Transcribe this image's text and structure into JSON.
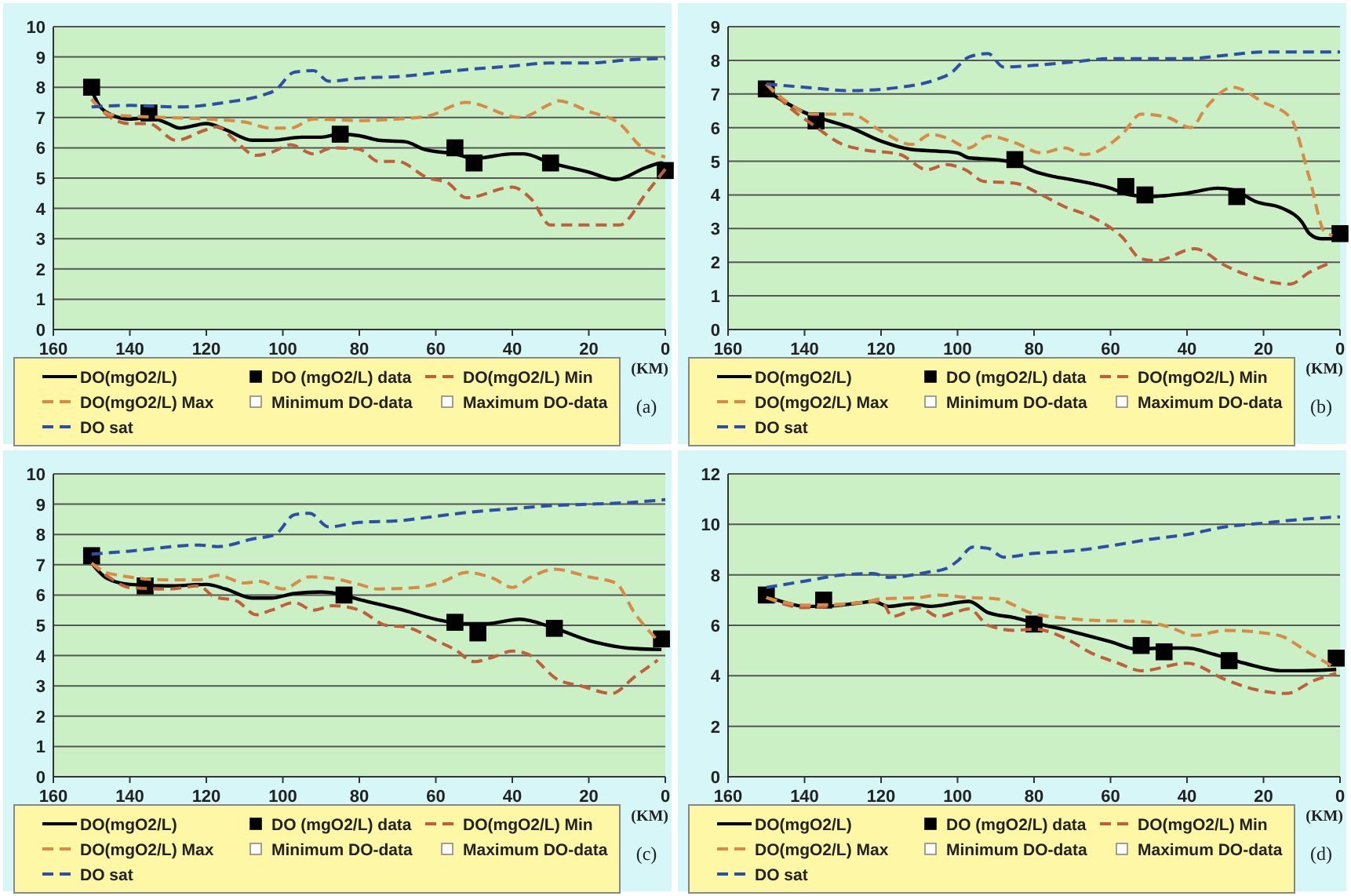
{
  "chart_data": [
    {
      "type": "line",
      "xlabel": "(KM)",
      "annotations": [
        "(a)"
      ],
      "xlim": [
        160,
        0
      ],
      "xticks": [
        160,
        140,
        120,
        100,
        80,
        60,
        40,
        20,
        0
      ],
      "ylim": [
        0,
        10
      ],
      "yticks": [
        0,
        1,
        2,
        3,
        4,
        5,
        6,
        7,
        8,
        9,
        10
      ],
      "grid": "y",
      "legend": "bottom",
      "series": [
        {
          "name": "DO(mgO2/L)",
          "type": "line",
          "color": "#000000",
          "marker": "none",
          "line_style": "solid",
          "x": [
            150,
            148,
            145,
            140,
            135,
            130,
            127,
            120,
            115,
            108,
            103,
            95,
            90,
            85,
            80,
            75,
            68,
            63,
            55,
            50,
            40,
            37,
            30,
            20,
            13,
            5,
            1,
            0
          ],
          "values": [
            7.9,
            7.4,
            7.1,
            6.95,
            7.0,
            6.8,
            6.65,
            6.8,
            6.6,
            6.25,
            6.25,
            6.35,
            6.35,
            6.45,
            6.4,
            6.25,
            6.2,
            5.95,
            5.8,
            5.65,
            5.8,
            5.8,
            5.5,
            5.2,
            4.95,
            5.35,
            5.5,
            5.4
          ]
        },
        {
          "name": "DO (mgO2/L) data",
          "type": "scatter",
          "color": "#000000",
          "marker": "square",
          "x": [
            150,
            135,
            85,
            55,
            50,
            30,
            0
          ],
          "values": [
            8.0,
            7.15,
            6.45,
            6.0,
            5.5,
            5.5,
            5.25
          ]
        },
        {
          "name": "DO(mgO2/L) Min",
          "type": "line",
          "color": "#c0603a",
          "marker": "none",
          "line_style": "dashed",
          "x": [
            150,
            145,
            140,
            135,
            128,
            120,
            117,
            113,
            107,
            103,
            98,
            92,
            87,
            80,
            75,
            70,
            62,
            57,
            52,
            40,
            35,
            30,
            12,
            5,
            0
          ],
          "values": [
            7.6,
            7.0,
            6.8,
            6.8,
            6.25,
            6.6,
            6.7,
            6.3,
            5.75,
            5.85,
            6.1,
            5.8,
            6.0,
            5.95,
            5.55,
            5.55,
            5.0,
            4.85,
            4.35,
            4.7,
            4.3,
            3.45,
            3.45,
            4.5,
            5.3
          ]
        },
        {
          "name": "DO(mgO2/L) Max",
          "type": "line",
          "color": "#d98a45",
          "marker": "none",
          "line_style": "dashed",
          "x": [
            150,
            145,
            140,
            130,
            120,
            110,
            103,
            98,
            92,
            80,
            70,
            62,
            52,
            38,
            30,
            28,
            20,
            12,
            6,
            0
          ],
          "values": [
            7.6,
            7.1,
            7.05,
            7.0,
            6.95,
            6.85,
            6.65,
            6.65,
            6.95,
            6.9,
            6.95,
            7.05,
            7.5,
            7.0,
            7.45,
            7.55,
            7.2,
            6.8,
            6.0,
            5.7
          ]
        },
        {
          "name": "Minimum DO-data",
          "type": "scatter",
          "color": "#ffffff",
          "marker": "square"
        },
        {
          "name": "Maximum DO-data",
          "type": "scatter",
          "color": "#ffffff",
          "marker": "square"
        },
        {
          "name": "DO sat",
          "type": "line",
          "color": "#2e4fa8",
          "marker": "none",
          "line_style": "dashed",
          "x": [
            150,
            140,
            127,
            115,
            105,
            102,
            97,
            92,
            88,
            80,
            70,
            55,
            40,
            30,
            20,
            10,
            0
          ],
          "values": [
            7.35,
            7.4,
            7.35,
            7.5,
            7.75,
            7.9,
            8.5,
            8.55,
            8.2,
            8.3,
            8.35,
            8.55,
            8.7,
            8.8,
            8.8,
            8.9,
            8.95
          ]
        }
      ]
    },
    {
      "type": "line",
      "xlabel": "(KM)",
      "annotations": [
        "(b)"
      ],
      "xlim": [
        160,
        0
      ],
      "xticks": [
        160,
        140,
        120,
        100,
        80,
        60,
        40,
        20,
        0
      ],
      "ylim": [
        0,
        9
      ],
      "yticks": [
        0,
        1,
        2,
        3,
        4,
        5,
        6,
        7,
        8,
        9
      ],
      "grid": "y",
      "legend": "bottom",
      "series": [
        {
          "name": "DO(mgO2/L)",
          "type": "line",
          "color": "#000000",
          "marker": "none",
          "line_style": "solid",
          "x": [
            150,
            145,
            140,
            135,
            128,
            120,
            112,
            105,
            100,
            97,
            90,
            85,
            80,
            75,
            70,
            60,
            55,
            50,
            40,
            32,
            28,
            22,
            15,
            10,
            8,
            5,
            2
          ],
          "values": [
            7.1,
            6.75,
            6.45,
            6.25,
            6.0,
            5.6,
            5.35,
            5.3,
            5.25,
            5.1,
            5.05,
            4.95,
            4.7,
            4.55,
            4.45,
            4.2,
            4.0,
            3.95,
            4.05,
            4.2,
            4.15,
            3.8,
            3.6,
            3.2,
            2.85,
            2.7,
            2.7
          ]
        },
        {
          "name": "DO (mgO2/L) data",
          "type": "scatter",
          "color": "#000000",
          "marker": "square",
          "x": [
            150,
            137,
            85,
            56,
            51,
            27,
            0
          ],
          "values": [
            7.15,
            6.2,
            5.05,
            4.25,
            4.0,
            3.95,
            2.85
          ]
        },
        {
          "name": "DO(mgO2/L) Min",
          "type": "line",
          "color": "#c0603a",
          "marker": "none",
          "line_style": "dashed",
          "x": [
            150,
            145,
            138,
            130,
            125,
            115,
            108,
            103,
            98,
            93,
            85,
            78,
            72,
            65,
            57,
            52,
            48,
            38,
            30,
            25,
            13,
            8,
            2
          ],
          "values": [
            7.3,
            6.7,
            6.1,
            5.5,
            5.35,
            5.2,
            4.75,
            4.9,
            4.75,
            4.4,
            4.35,
            4.0,
            3.65,
            3.35,
            2.75,
            2.1,
            2.05,
            2.4,
            1.9,
            1.65,
            1.35,
            1.7,
            2.0
          ]
        },
        {
          "name": "DO(mgO2/L) Max",
          "type": "line",
          "color": "#d98a45",
          "marker": "none",
          "line_style": "dashed",
          "x": [
            150,
            145,
            138,
            128,
            120,
            112,
            107,
            103,
            97,
            92,
            85,
            78,
            72,
            67,
            57,
            52,
            45,
            39,
            35,
            28,
            20,
            13,
            8,
            4,
            2
          ],
          "values": [
            7.3,
            6.8,
            6.4,
            6.4,
            5.9,
            5.5,
            5.8,
            5.7,
            5.4,
            5.75,
            5.55,
            5.25,
            5.4,
            5.2,
            5.8,
            6.4,
            6.3,
            6.0,
            6.6,
            7.2,
            6.75,
            6.3,
            4.5,
            2.9,
            2.8
          ]
        },
        {
          "name": "Minimum DO-data",
          "type": "scatter",
          "color": "#ffffff",
          "marker": "square"
        },
        {
          "name": "Maximum DO-data",
          "type": "scatter",
          "color": "#ffffff",
          "marker": "square"
        },
        {
          "name": "DO sat",
          "type": "line",
          "color": "#2e4fa8",
          "marker": "none",
          "line_style": "dashed",
          "x": [
            150,
            140,
            128,
            115,
            105,
            102,
            97,
            92,
            88,
            80,
            70,
            60,
            40,
            30,
            20,
            10,
            0
          ],
          "values": [
            7.3,
            7.2,
            7.1,
            7.2,
            7.45,
            7.6,
            8.1,
            8.2,
            7.8,
            7.85,
            7.95,
            8.05,
            8.05,
            8.15,
            8.25,
            8.25,
            8.25
          ]
        }
      ]
    },
    {
      "type": "line",
      "xlabel": "(KM)",
      "annotations": [
        "(c)"
      ],
      "xlim": [
        160,
        0
      ],
      "xticks": [
        160,
        140,
        120,
        100,
        80,
        60,
        40,
        20,
        0
      ],
      "ylim": [
        0,
        10
      ],
      "yticks": [
        0,
        1,
        2,
        3,
        4,
        5,
        6,
        7,
        8,
        9,
        10
      ],
      "grid": "y",
      "legend": "bottom",
      "series": [
        {
          "name": "DO(mgO2/L)",
          "type": "line",
          "color": "#000000",
          "marker": "none",
          "line_style": "solid",
          "x": [
            150,
            146,
            140,
            130,
            120,
            115,
            108,
            103,
            97,
            90,
            86,
            80,
            70,
            60,
            53,
            47,
            38,
            30,
            20,
            10,
            1
          ],
          "values": [
            7.05,
            6.55,
            6.35,
            6.3,
            6.35,
            6.2,
            5.9,
            5.9,
            6.05,
            6.1,
            6.05,
            5.85,
            5.55,
            5.2,
            5.05,
            5.05,
            5.2,
            4.95,
            4.5,
            4.25,
            4.2
          ]
        },
        {
          "name": "DO (mgO2/L) data",
          "type": "scatter",
          "color": "#000000",
          "marker": "square",
          "x": [
            150,
            136,
            84,
            55,
            49,
            29,
            1
          ],
          "values": [
            7.3,
            6.3,
            6.0,
            5.1,
            4.75,
            4.9,
            4.55
          ]
        },
        {
          "name": "DO(mgO2/L) Min",
          "type": "line",
          "color": "#c0603a",
          "marker": "none",
          "line_style": "dashed",
          "x": [
            150,
            145,
            140,
            130,
            122,
            118,
            112,
            107,
            103,
            97,
            92,
            87,
            80,
            73,
            68,
            60,
            55,
            50,
            45,
            40,
            36,
            28,
            22,
            14,
            8,
            2
          ],
          "values": [
            7.05,
            6.55,
            6.25,
            6.2,
            6.3,
            5.95,
            5.8,
            5.35,
            5.5,
            5.75,
            5.5,
            5.65,
            5.5,
            5.0,
            4.95,
            4.5,
            4.2,
            3.8,
            3.95,
            4.15,
            4.05,
            3.2,
            3.0,
            2.75,
            3.3,
            3.85
          ]
        },
        {
          "name": "DO(mgO2/L) Max",
          "type": "line",
          "color": "#d98a45",
          "marker": "none",
          "line_style": "dashed",
          "x": [
            150,
            145,
            130,
            122,
            117,
            110,
            106,
            100,
            93,
            87,
            80,
            75,
            65,
            58,
            52,
            45,
            40,
            35,
            29,
            20,
            13,
            8,
            2
          ],
          "values": [
            7.05,
            6.7,
            6.5,
            6.5,
            6.65,
            6.4,
            6.45,
            6.2,
            6.6,
            6.55,
            6.35,
            6.2,
            6.25,
            6.45,
            6.75,
            6.55,
            6.25,
            6.6,
            6.85,
            6.6,
            6.4,
            5.4,
            4.5
          ]
        },
        {
          "name": "Minimum DO-data",
          "type": "scatter",
          "color": "#ffffff",
          "marker": "square"
        },
        {
          "name": "Maximum DO-data",
          "type": "scatter",
          "color": "#ffffff",
          "marker": "square"
        },
        {
          "name": "DO sat",
          "type": "line",
          "color": "#2e4fa8",
          "marker": "none",
          "line_style": "dashed",
          "x": [
            150,
            140,
            122,
            117,
            108,
            102,
            97,
            93,
            88,
            80,
            70,
            60,
            50,
            40,
            30,
            20,
            10,
            0
          ],
          "values": [
            7.35,
            7.45,
            7.65,
            7.6,
            7.85,
            8.0,
            8.65,
            8.7,
            8.25,
            8.4,
            8.45,
            8.6,
            8.75,
            8.85,
            8.95,
            9.0,
            9.05,
            9.15
          ]
        }
      ]
    },
    {
      "type": "line",
      "xlabel": "(KM)",
      "annotations": [
        "(d)"
      ],
      "xlim": [
        160,
        0
      ],
      "xticks": [
        160,
        140,
        120,
        100,
        80,
        60,
        40,
        20,
        0
      ],
      "ylim": [
        0,
        12
      ],
      "yticks": [
        0,
        2,
        4,
        6,
        8,
        10,
        12
      ],
      "grid": "y",
      "legend": "bottom",
      "series": [
        {
          "name": "DO(mgO2/L)",
          "type": "line",
          "color": "#000000",
          "marker": "none",
          "line_style": "solid",
          "x": [
            150,
            145,
            140,
            135,
            125,
            122,
            118,
            112,
            107,
            100,
            97,
            92,
            85,
            80,
            70,
            60,
            53,
            47,
            40,
            33,
            25,
            15,
            10,
            1
          ],
          "values": [
            7.15,
            6.9,
            6.75,
            6.75,
            6.9,
            6.95,
            6.75,
            6.85,
            6.75,
            6.9,
            6.95,
            6.5,
            6.3,
            6.1,
            5.75,
            5.35,
            5.05,
            5.1,
            5.1,
            4.85,
            4.5,
            4.2,
            4.2,
            4.25
          ]
        },
        {
          "name": "DO (mgO2/L) data",
          "type": "scatter",
          "color": "#000000",
          "marker": "square",
          "x": [
            150,
            135,
            80,
            52,
            46,
            29,
            1
          ],
          "values": [
            7.2,
            7.0,
            6.05,
            5.2,
            4.95,
            4.6,
            4.7
          ]
        },
        {
          "name": "DO(mgO2/L) Min",
          "type": "line",
          "color": "#c0603a",
          "marker": "none",
          "line_style": "dashed",
          "x": [
            150,
            140,
            125,
            120,
            117,
            110,
            105,
            100,
            97,
            92,
            85,
            80,
            72,
            65,
            58,
            52,
            40,
            30,
            22,
            14,
            7,
            1
          ],
          "values": [
            7.1,
            6.7,
            6.9,
            6.95,
            6.35,
            6.7,
            6.35,
            6.55,
            6.65,
            6.0,
            5.8,
            5.85,
            5.5,
            4.9,
            4.5,
            4.2,
            4.5,
            3.85,
            3.45,
            3.3,
            3.8,
            4.1
          ]
        },
        {
          "name": "DO(mgO2/L) Max",
          "type": "line",
          "color": "#d98a45",
          "marker": "none",
          "line_style": "dashed",
          "x": [
            150,
            140,
            125,
            120,
            110,
            105,
            97,
            90,
            80,
            73,
            65,
            52,
            45,
            38,
            30,
            20,
            15,
            8,
            1
          ],
          "values": [
            7.1,
            6.8,
            6.9,
            7.05,
            7.1,
            7.2,
            7.1,
            7.05,
            6.45,
            6.3,
            6.2,
            6.15,
            5.95,
            5.6,
            5.8,
            5.7,
            5.55,
            4.9,
            4.3
          ]
        },
        {
          "name": "Minimum DO-data",
          "type": "scatter",
          "color": "#ffffff",
          "marker": "square"
        },
        {
          "name": "Maximum DO-data",
          "type": "scatter",
          "color": "#ffffff",
          "marker": "square"
        },
        {
          "name": "DO sat",
          "type": "line",
          "color": "#2e4fa8",
          "marker": "none",
          "line_style": "dashed",
          "x": [
            150,
            140,
            130,
            122,
            118,
            108,
            103,
            100,
            96,
            92,
            88,
            80,
            70,
            60,
            50,
            40,
            30,
            20,
            10,
            0
          ],
          "values": [
            7.5,
            7.75,
            8.0,
            8.05,
            7.9,
            8.1,
            8.25,
            8.55,
            9.1,
            9.05,
            8.7,
            8.85,
            8.95,
            9.15,
            9.4,
            9.6,
            9.9,
            10.05,
            10.2,
            10.3
          ]
        }
      ]
    }
  ]
}
